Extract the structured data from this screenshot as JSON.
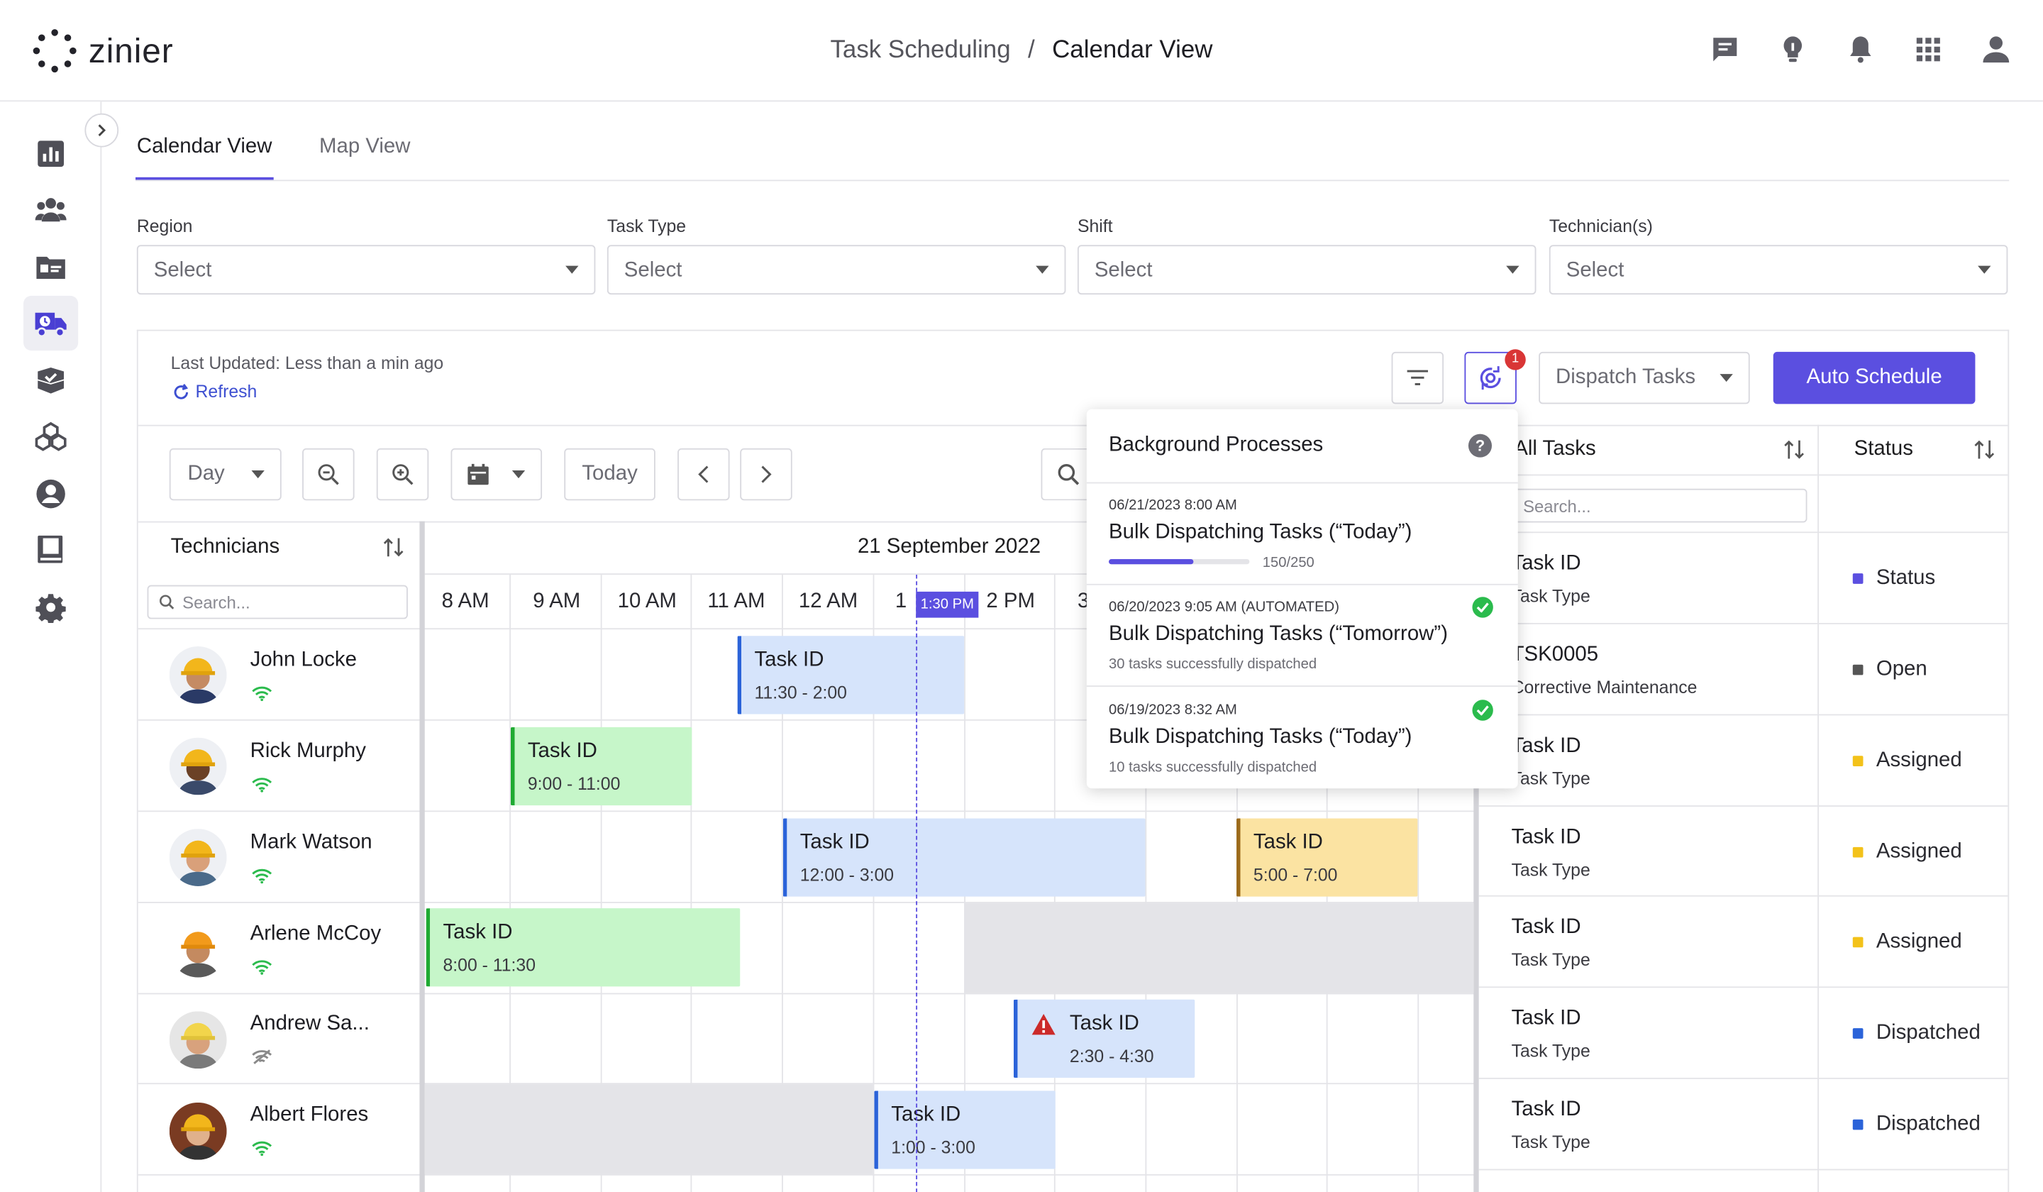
{
  "header": {
    "logo_text": "zinier",
    "breadcrumb_parent": "Task Scheduling",
    "breadcrumb_sep": "/",
    "breadcrumb_current": "Calendar View",
    "icons": [
      "chat-icon",
      "lightbulb-icon",
      "bell-icon",
      "apps-grid-icon",
      "user-icon"
    ]
  },
  "sidebar": {
    "items": [
      "dashboard-icon",
      "team-icon",
      "id-card-icon",
      "delivery-truck-icon",
      "package-check-icon",
      "boxes-icon",
      "account-icon",
      "book-icon",
      "settings-icon"
    ],
    "active": "delivery-truck-icon"
  },
  "tabs": [
    {
      "label": "Calendar View",
      "active": true
    },
    {
      "label": "Map View",
      "active": false
    }
  ],
  "filters": [
    {
      "label": "Region",
      "placeholder": "Select"
    },
    {
      "label": "Task Type",
      "placeholder": "Select"
    },
    {
      "label": "Shift",
      "placeholder": "Select"
    },
    {
      "label": "Technician(s)",
      "placeholder": "Select"
    }
  ],
  "panel": {
    "last_updated": "Last Updated: Less than a min ago",
    "refresh": "Refresh",
    "dispatch_select": "Dispatch Tasks",
    "auto_schedule": "Auto Schedule",
    "badge_count": "1"
  },
  "toolbar": {
    "view_select": "Day",
    "today": "Today"
  },
  "calendar": {
    "technicians_header": "Technicians",
    "search_placeholder": "Search...",
    "date": "21 September 2022",
    "now_label": "1:30 PM",
    "hours": [
      "8 AM",
      "9 AM",
      "10 AM",
      "11 AM",
      "12 AM",
      "1",
      "2 PM",
      "3"
    ],
    "technicians": [
      {
        "name": "John Locke",
        "online": true
      },
      {
        "name": "Rick Murphy",
        "online": true
      },
      {
        "name": "Mark Watson",
        "online": true
      },
      {
        "name": "Arlene McCoy",
        "online": true
      },
      {
        "name": "Andrew Sa...",
        "online": false
      },
      {
        "name": "Albert Flores",
        "online": true
      }
    ],
    "tasks": [
      {
        "id": "Task ID",
        "time": "11:30 - 2:00",
        "color": "blue"
      },
      {
        "id": "Task ID",
        "time": "9:00 - 11:00",
        "color": "green"
      },
      {
        "id": "Task ID",
        "time": "12:00 - 3:00",
        "color": "blue"
      },
      {
        "id": "Task ID",
        "time": "5:00 - 7:00",
        "color": "yellow"
      },
      {
        "id": "Task ID",
        "time": "8:00 - 11:30",
        "color": "green"
      },
      {
        "id": "Task ID",
        "time": "2:30 - 4:30",
        "color": "blue",
        "warning": true
      },
      {
        "id": "Task ID",
        "time": "1:00 - 3:00",
        "color": "blue"
      }
    ]
  },
  "popup": {
    "title": "Background Processes",
    "items": [
      {
        "date": "06/21/2023 8:00 AM",
        "name": "Bulk Dispatching Tasks (“Today”)",
        "progress_text": "150/250",
        "progress": 0.6
      },
      {
        "date": "06/20/2023 9:05 AM (AUTOMATED)",
        "name": "Bulk Dispatching Tasks (“Tomorrow”)",
        "sub": "30 tasks successfully dispatched"
      },
      {
        "date": "06/19/2023 8:32 AM",
        "name": "Bulk Dispatching Tasks (“Today”)",
        "sub": "10 tasks successfully dispatched"
      }
    ]
  },
  "all_tasks": {
    "header": "All Tasks",
    "status_header": "Status",
    "search_placeholder": "Search...",
    "rows": [
      {
        "id": "Task ID",
        "type": "Task Type",
        "status": "Status",
        "color": "#5b4fe0"
      },
      {
        "id": "TSK0005",
        "type": "Corrective Maintenance",
        "status": "Open",
        "color": "#555555"
      },
      {
        "id": "Task ID",
        "type": "Task Type",
        "status": "Assigned",
        "color": "#f3c21a"
      },
      {
        "id": "Task ID",
        "type": "Task Type",
        "status": "Assigned",
        "color": "#f3c21a"
      },
      {
        "id": "Task ID",
        "type": "Task Type",
        "status": "Assigned",
        "color": "#f3c21a"
      },
      {
        "id": "Task ID",
        "type": "Task Type",
        "status": "Dispatched",
        "color": "#2b63d9"
      },
      {
        "id": "Task ID",
        "type": "Task Type",
        "status": "Dispatched",
        "color": "#2b63d9"
      }
    ]
  }
}
